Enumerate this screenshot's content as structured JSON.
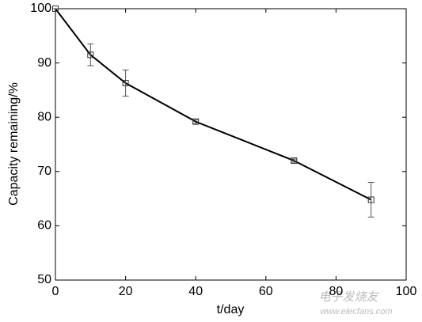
{
  "chart_data": {
    "type": "line",
    "xlabel": "t/day",
    "ylabel": "Capacity remaining/%",
    "x": [
      0,
      10,
      20,
      40,
      68,
      90
    ],
    "series": [
      {
        "color": "#000000",
        "values": [
          100,
          91.5,
          86.3,
          79.2,
          72,
          64.8
        ],
        "errors": [
          0,
          2,
          2.4,
          0.3,
          0.3,
          3.2
        ]
      }
    ],
    "xlim": [
      0,
      100
    ],
    "xticks": [
      0,
      20,
      40,
      60,
      80,
      100
    ],
    "ylim": [
      50,
      100
    ],
    "yticks": [
      50,
      60,
      70,
      80,
      90,
      100
    ],
    "watermark": [
      "电子发烧友",
      "www.elecfans.com"
    ]
  }
}
